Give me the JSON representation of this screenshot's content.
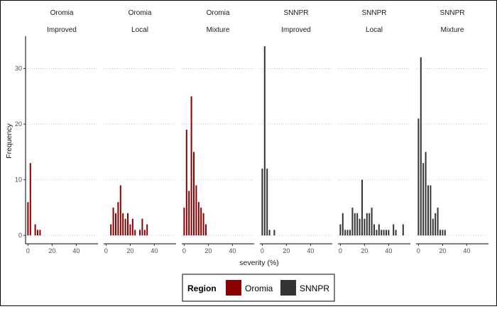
{
  "chart_data": {
    "type": "bar",
    "xlabel": "severity (%)",
    "ylabel": "Frequency",
    "xlim": [
      -2,
      58
    ],
    "ylim": [
      -1.5,
      35.8
    ],
    "x_ticks": [
      0,
      20,
      40
    ],
    "y_ticks": [
      0,
      10,
      20,
      30
    ],
    "grid": "horizontal dotted",
    "legend": {
      "title": "Region",
      "position": "bottom",
      "entries": [
        {
          "name": "Oromia",
          "color": "#8B0000"
        },
        {
          "name": "SNNPR",
          "color": "#333333"
        }
      ]
    },
    "panels": [
      {
        "region": "Oromia",
        "variety": "Improved",
        "color": "#8B0000",
        "bars": [
          [
            0,
            6
          ],
          [
            2,
            13
          ],
          [
            4,
            0
          ],
          [
            6,
            2
          ],
          [
            8,
            1
          ],
          [
            10,
            1
          ]
        ]
      },
      {
        "region": "Oromia",
        "variety": "Local",
        "color": "#8B0000",
        "bars": [
          [
            4,
            2
          ],
          [
            6,
            5
          ],
          [
            8,
            4
          ],
          [
            10,
            6
          ],
          [
            12,
            9
          ],
          [
            14,
            4
          ],
          [
            16,
            3
          ],
          [
            18,
            4
          ],
          [
            20,
            2
          ],
          [
            22,
            3
          ],
          [
            24,
            1
          ],
          [
            28,
            1
          ],
          [
            30,
            3
          ],
          [
            32,
            1
          ],
          [
            34,
            2
          ]
        ]
      },
      {
        "region": "Oromia",
        "variety": "Mixture",
        "color": "#8B0000",
        "bars": [
          [
            0,
            5
          ],
          [
            2,
            19
          ],
          [
            4,
            8
          ],
          [
            6,
            25
          ],
          [
            8,
            15
          ],
          [
            10,
            9
          ],
          [
            12,
            6
          ],
          [
            14,
            5
          ],
          [
            16,
            4
          ],
          [
            18,
            2
          ]
        ]
      },
      {
        "region": "SNNPR",
        "variety": "Improved",
        "color": "#333333",
        "bars": [
          [
            0,
            12
          ],
          [
            2,
            34
          ],
          [
            4,
            12
          ],
          [
            6,
            1
          ],
          [
            10,
            1
          ]
        ]
      },
      {
        "region": "SNNPR",
        "variety": "Local",
        "color": "#333333",
        "bars": [
          [
            0,
            2
          ],
          [
            2,
            4
          ],
          [
            4,
            1
          ],
          [
            6,
            1
          ],
          [
            8,
            1
          ],
          [
            10,
            5
          ],
          [
            12,
            4
          ],
          [
            14,
            4
          ],
          [
            16,
            3
          ],
          [
            18,
            10
          ],
          [
            20,
            3
          ],
          [
            22,
            4
          ],
          [
            24,
            4
          ],
          [
            26,
            5
          ],
          [
            28,
            2
          ],
          [
            30,
            1
          ],
          [
            32,
            2
          ],
          [
            34,
            1
          ],
          [
            36,
            1
          ],
          [
            38,
            1
          ],
          [
            40,
            1
          ],
          [
            44,
            2
          ],
          [
            46,
            1
          ],
          [
            52,
            2
          ]
        ]
      },
      {
        "region": "SNNPR",
        "variety": "Mixture",
        "color": "#333333",
        "bars": [
          [
            0,
            21
          ],
          [
            2,
            32
          ],
          [
            4,
            13
          ],
          [
            6,
            15
          ],
          [
            8,
            9
          ],
          [
            10,
            9
          ],
          [
            12,
            3
          ],
          [
            14,
            4
          ],
          [
            16,
            5
          ],
          [
            18,
            1
          ],
          [
            20,
            1
          ],
          [
            22,
            1
          ]
        ]
      }
    ]
  }
}
